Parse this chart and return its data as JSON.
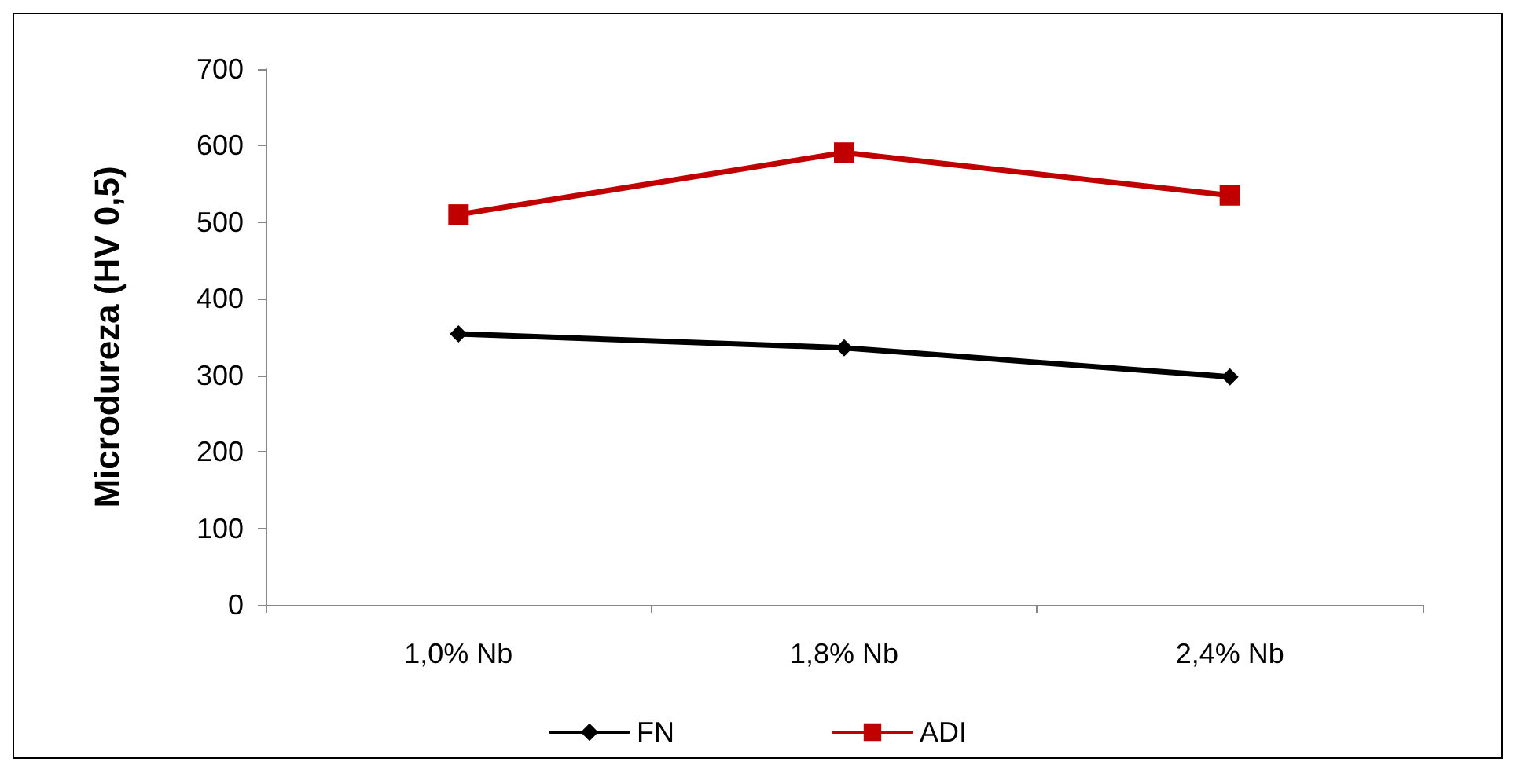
{
  "chart_data": {
    "type": "line",
    "ylabel": "Microdureza (HV 0,5)",
    "categories": [
      "1,0% Nb",
      "1,8% Nb",
      "2,4% Nb"
    ],
    "series": [
      {
        "name": "FN",
        "color": "#000000",
        "marker": "diamond",
        "values": [
          354,
          336,
          298
        ]
      },
      {
        "name": "ADI",
        "color": "#c00000",
        "marker": "square",
        "values": [
          510,
          591,
          535
        ]
      }
    ],
    "ylim": [
      0,
      700
    ],
    "yticks": [
      0,
      100,
      200,
      300,
      400,
      500,
      600,
      700
    ],
    "grid": false,
    "legend": "bottom"
  }
}
